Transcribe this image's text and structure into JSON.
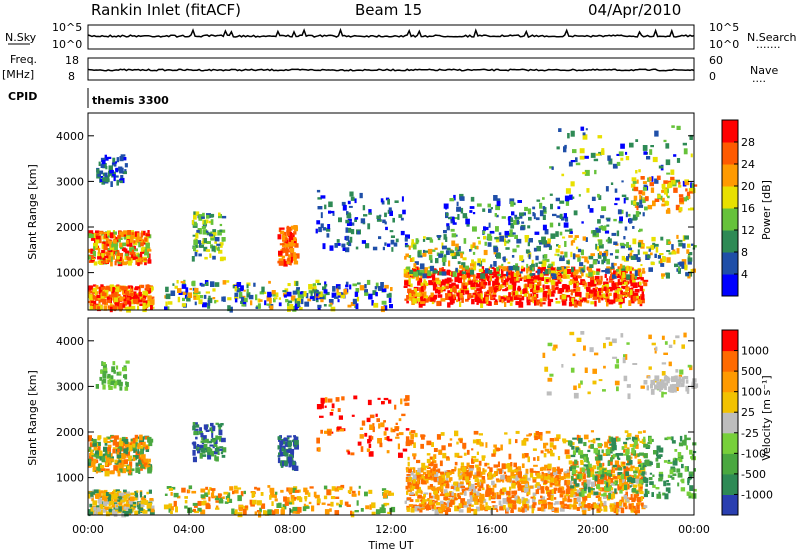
{
  "header": {
    "title": "Rankin Inlet (fitACF)",
    "beam": "Beam 15",
    "date": "04/Apr/2010"
  },
  "panels": {
    "nsky_label": "N.Sky",
    "nsearch_label": "N.Search",
    "nsky_ticks": [
      "10^5",
      "10^0"
    ],
    "nsearch_ticks": [
      "10^5",
      "10^0"
    ],
    "freq_label": "Freq.",
    "freq_unit": "[MHz]",
    "freq_ticks": [
      "18",
      "8"
    ],
    "nave_label": "Nave",
    "nave_ticks": [
      "60",
      "0"
    ],
    "cpid_label": "CPID",
    "cpid_value": "themis 3300"
  },
  "chart_data": [
    {
      "type": "heatmap",
      "title": "Power",
      "ylabel": "Slant Range [km]",
      "xlabel": "",
      "ylim": [
        180,
        4500
      ],
      "yticks": [
        "4000",
        "3000",
        "2000",
        "1000"
      ],
      "colorbar_label": "Power [dB]",
      "colorbar_ticks": [
        "28",
        "24",
        "20",
        "16",
        "12",
        "8",
        "4"
      ],
      "colors": [
        "#0000ff",
        "#1f4fa8",
        "#2e8a55",
        "#66c23a",
        "#e8e000",
        "#ff9a00",
        "#ff5a00",
        "#ff0000"
      ]
    },
    {
      "type": "heatmap",
      "title": "Velocity",
      "ylabel": "Slant Range [km]",
      "xlabel": "Time UT",
      "ylim": [
        180,
        4500
      ],
      "yticks": [
        "4000",
        "3000",
        "2000",
        "1000"
      ],
      "xticks": [
        "00:00",
        "04:00",
        "08:00",
        "12:00",
        "16:00",
        "20:00",
        "00:00"
      ],
      "colorbar_label": "Velocity [m s⁻¹]",
      "colorbar_ticks": [
        "1000",
        "500",
        "100",
        "25",
        "-25",
        "-100",
        "-500",
        "-1000"
      ],
      "colors": [
        "#2a3fb0",
        "#2e8a55",
        "#4aa840",
        "#77cf3a",
        "#bdbdbd",
        "#f2c200",
        "#ff9a00",
        "#ff6a00",
        "#ff0000"
      ]
    }
  ]
}
